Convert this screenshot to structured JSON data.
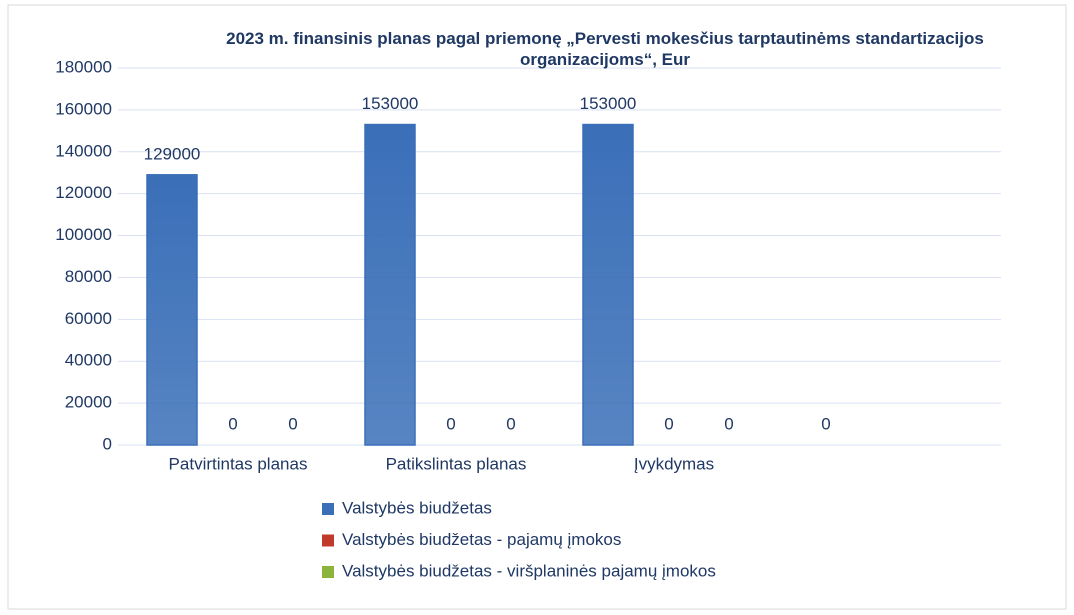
{
  "chart_data": {
    "type": "bar",
    "title": "2023 m. finansinis planas pagal priemonę „Pervesti mokesčius tarptautinėms standartizacijos organizacijoms“, Eur",
    "categories": [
      "Patvirtintas planas",
      "Patikslintas planas",
      "Įvykdymas",
      null
    ],
    "series": [
      {
        "name": "Valstybės biudžetas",
        "color": "#3a6fb8",
        "values": [
          129000,
          153000,
          153000,
          0
        ]
      },
      {
        "name": "Valstybės biudžetas -  pajamų įmokos",
        "color": "#c0392b",
        "values": [
          0,
          0,
          0,
          null
        ]
      },
      {
        "name": "Valstybės biudžetas - viršplaninės pajamų įmokos",
        "color": "#8db43a",
        "values": [
          0,
          0,
          0,
          null
        ]
      }
    ],
    "ylim": [
      0,
      180000
    ],
    "yticks": [
      0,
      20000,
      40000,
      60000,
      80000,
      100000,
      120000,
      140000,
      160000,
      180000
    ],
    "grid": true,
    "legend": "bottom"
  }
}
